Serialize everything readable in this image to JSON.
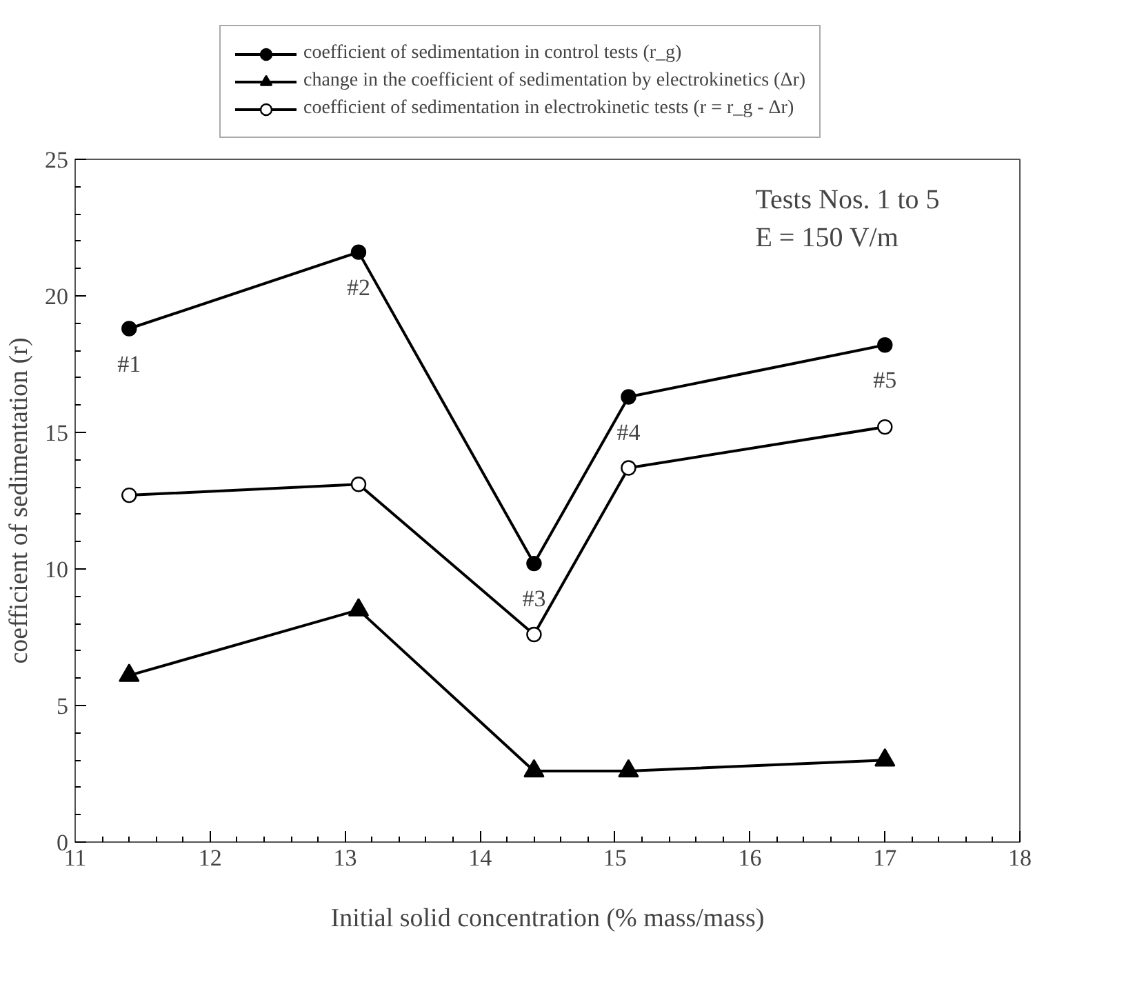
{
  "chart_data": {
    "type": "line",
    "xlabel": "Initial solid concentration (% mass/mass)",
    "ylabel": "coefficient of sedimentation (r)",
    "x": [
      11.4,
      13.1,
      14.4,
      15.1,
      17.0
    ],
    "series": [
      {
        "name": "coefficient of sedimentation in control tests (r_g)",
        "color": "#000000",
        "marker": "circle",
        "values": [
          18.8,
          21.6,
          10.2,
          16.3,
          18.2
        ]
      },
      {
        "name": "change in the coefficient of sedimentation by electrokinetics (Δr)",
        "color": "#000000",
        "marker": "triangle",
        "values": [
          6.1,
          8.5,
          2.6,
          2.6,
          3.0
        ]
      },
      {
        "name": "coefficient of sedimentation in electrokinetic tests (r = r_g - Δr)",
        "color": "#000000",
        "marker": "circle_open",
        "values": [
          12.7,
          13.1,
          7.6,
          13.7,
          15.2
        ]
      }
    ],
    "xlim": [
      11,
      18
    ],
    "xticks": [
      11,
      12,
      13,
      14,
      15,
      16,
      17,
      18
    ],
    "ylim": [
      0,
      25
    ],
    "yticks": [
      0,
      5,
      10,
      15,
      20,
      25
    ],
    "grid": false,
    "legend": "top",
    "line_style": "solid",
    "annotations": [
      {
        "text": "#1",
        "x": 11.4,
        "y": 18.8
      },
      {
        "text": "#2",
        "x": 13.1,
        "y": 21.6
      },
      {
        "text": "#3",
        "x": 14.4,
        "y": 10.2
      },
      {
        "text": "#4",
        "x": 15.1,
        "y": 16.3
      },
      {
        "text": "#5",
        "x": 17.0,
        "y": 18.2
      },
      "Tests Nos. 1 to 5",
      "E = 150 V/m"
    ]
  }
}
